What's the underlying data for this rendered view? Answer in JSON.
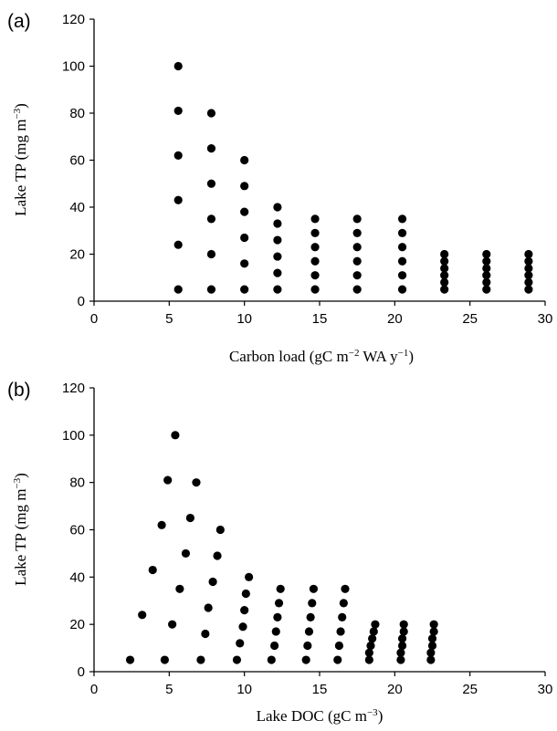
{
  "chart_data": [
    {
      "panel_label": "(a)",
      "type": "scatter",
      "xlabel_parts": [
        "Carbon load (gC m",
        "−2",
        " WA y",
        "−1",
        ")"
      ],
      "ylabel_parts": [
        "Lake TP (mg m",
        "−3",
        ")"
      ],
      "xlim": [
        0,
        30
      ],
      "ylim": [
        0,
        120
      ],
      "xticks": [
        0,
        5,
        10,
        15,
        20,
        25,
        30
      ],
      "yticks": [
        0,
        20,
        40,
        60,
        80,
        100,
        120
      ],
      "points": [
        [
          5.6,
          100
        ],
        [
          5.6,
          81
        ],
        [
          5.6,
          62
        ],
        [
          5.6,
          43
        ],
        [
          5.6,
          24
        ],
        [
          5.6,
          5
        ],
        [
          7.8,
          80
        ],
        [
          7.8,
          65
        ],
        [
          7.8,
          50
        ],
        [
          7.8,
          35
        ],
        [
          7.8,
          20
        ],
        [
          7.8,
          5
        ],
        [
          10.0,
          60
        ],
        [
          10.0,
          49
        ],
        [
          10.0,
          38
        ],
        [
          10.0,
          27
        ],
        [
          10.0,
          16
        ],
        [
          10.0,
          5
        ],
        [
          12.2,
          40
        ],
        [
          12.2,
          33
        ],
        [
          12.2,
          26
        ],
        [
          12.2,
          19
        ],
        [
          12.2,
          12
        ],
        [
          12.2,
          5
        ],
        [
          14.7,
          35
        ],
        [
          14.7,
          29
        ],
        [
          14.7,
          23
        ],
        [
          14.7,
          17
        ],
        [
          14.7,
          11
        ],
        [
          14.7,
          5
        ],
        [
          17.5,
          35
        ],
        [
          17.5,
          29
        ],
        [
          17.5,
          23
        ],
        [
          17.5,
          17
        ],
        [
          17.5,
          11
        ],
        [
          17.5,
          5
        ],
        [
          20.5,
          35
        ],
        [
          20.5,
          29
        ],
        [
          20.5,
          23
        ],
        [
          20.5,
          17
        ],
        [
          20.5,
          11
        ],
        [
          20.5,
          5
        ],
        [
          23.3,
          20
        ],
        [
          23.3,
          17
        ],
        [
          23.3,
          14
        ],
        [
          23.3,
          11
        ],
        [
          23.3,
          8
        ],
        [
          23.3,
          5
        ],
        [
          26.1,
          20
        ],
        [
          26.1,
          17
        ],
        [
          26.1,
          14
        ],
        [
          26.1,
          11
        ],
        [
          26.1,
          8
        ],
        [
          26.1,
          5
        ],
        [
          28.9,
          20
        ],
        [
          28.9,
          17
        ],
        [
          28.9,
          14
        ],
        [
          28.9,
          11
        ],
        [
          28.9,
          8
        ],
        [
          28.9,
          5
        ]
      ]
    },
    {
      "panel_label": "(b)",
      "type": "scatter",
      "xlabel_parts": [
        "Lake DOC (gC m",
        "−3",
        ")"
      ],
      "ylabel_parts": [
        "Lake TP (mg m",
        "−3",
        ")"
      ],
      "xlim": [
        0,
        30
      ],
      "ylim": [
        0,
        120
      ],
      "xticks": [
        0,
        5,
        10,
        15,
        20,
        25,
        30
      ],
      "yticks": [
        0,
        20,
        40,
        60,
        80,
        100,
        120
      ],
      "points": [
        [
          5.4,
          100
        ],
        [
          4.9,
          81
        ],
        [
          4.5,
          62
        ],
        [
          3.9,
          43
        ],
        [
          3.2,
          24
        ],
        [
          2.4,
          5
        ],
        [
          6.8,
          80
        ],
        [
          6.4,
          65
        ],
        [
          6.1,
          50
        ],
        [
          5.7,
          35
        ],
        [
          5.2,
          20
        ],
        [
          4.7,
          5
        ],
        [
          8.4,
          60
        ],
        [
          8.2,
          49
        ],
        [
          7.9,
          38
        ],
        [
          7.6,
          27
        ],
        [
          7.4,
          16
        ],
        [
          7.1,
          5
        ],
        [
          10.3,
          40
        ],
        [
          10.1,
          33
        ],
        [
          10.0,
          26
        ],
        [
          9.9,
          19
        ],
        [
          9.7,
          12
        ],
        [
          9.5,
          5
        ],
        [
          12.4,
          35
        ],
        [
          12.3,
          29
        ],
        [
          12.2,
          23
        ],
        [
          12.1,
          17
        ],
        [
          12.0,
          11
        ],
        [
          11.8,
          5
        ],
        [
          14.6,
          35
        ],
        [
          14.5,
          29
        ],
        [
          14.4,
          23
        ],
        [
          14.3,
          17
        ],
        [
          14.2,
          11
        ],
        [
          14.1,
          5
        ],
        [
          16.7,
          35
        ],
        [
          16.6,
          29
        ],
        [
          16.5,
          23
        ],
        [
          16.4,
          17
        ],
        [
          16.3,
          11
        ],
        [
          16.2,
          5
        ],
        [
          18.7,
          20
        ],
        [
          18.6,
          17
        ],
        [
          18.5,
          14
        ],
        [
          18.4,
          11
        ],
        [
          18.3,
          8
        ],
        [
          18.3,
          5
        ],
        [
          20.6,
          20
        ],
        [
          20.6,
          17
        ],
        [
          20.5,
          14
        ],
        [
          20.5,
          11
        ],
        [
          20.4,
          8
        ],
        [
          20.4,
          5
        ],
        [
          22.6,
          20
        ],
        [
          22.6,
          17
        ],
        [
          22.5,
          14
        ],
        [
          22.5,
          11
        ],
        [
          22.4,
          8
        ],
        [
          22.4,
          5
        ]
      ]
    }
  ]
}
